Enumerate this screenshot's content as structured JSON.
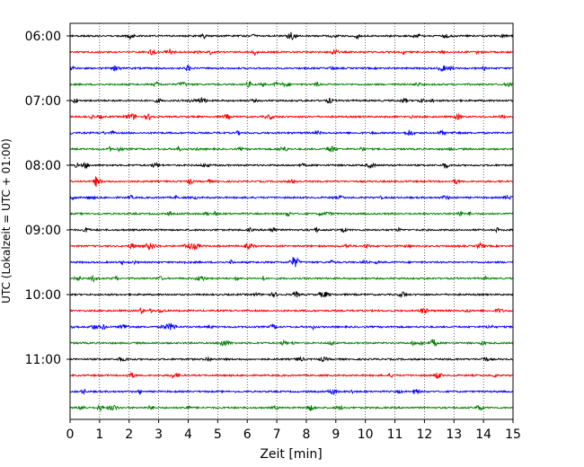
{
  "chart_data": {
    "type": "line",
    "title": "",
    "xlabel": "Zeit  [min]",
    "ylabel": "UTC (Lokalzeit = UTC + 01:00)",
    "xlim": [
      0,
      15
    ],
    "x_ticks": [
      0,
      1,
      2,
      3,
      4,
      5,
      6,
      7,
      8,
      9,
      10,
      11,
      12,
      13,
      14,
      15
    ],
    "x_tick_labels": [
      "0",
      "1",
      "2",
      "3",
      "4",
      "5",
      "6",
      "7",
      "8",
      "9",
      "10",
      "11",
      "12",
      "13",
      "14",
      "15"
    ],
    "y_tick_labels": [
      "06:00",
      "07:00",
      "08:00",
      "09:00",
      "10:00",
      "11:00"
    ],
    "grid": "vertical dotted",
    "trace_minutes": 15,
    "traces_per_hour": 4,
    "start_time": "06:00",
    "traces": [
      {
        "start": "06:00",
        "color": "#000000"
      },
      {
        "start": "06:15",
        "color": "#ff0000"
      },
      {
        "start": "06:30",
        "color": "#0000ff"
      },
      {
        "start": "06:45",
        "color": "#008000"
      },
      {
        "start": "07:00",
        "color": "#000000"
      },
      {
        "start": "07:15",
        "color": "#ff0000"
      },
      {
        "start": "07:30",
        "color": "#0000ff"
      },
      {
        "start": "07:45",
        "color": "#008000"
      },
      {
        "start": "08:00",
        "color": "#000000"
      },
      {
        "start": "08:15",
        "color": "#ff0000"
      },
      {
        "start": "08:30",
        "color": "#0000ff"
      },
      {
        "start": "08:45",
        "color": "#008000"
      },
      {
        "start": "09:00",
        "color": "#000000"
      },
      {
        "start": "09:15",
        "color": "#ff0000"
      },
      {
        "start": "09:30",
        "color": "#0000ff"
      },
      {
        "start": "09:45",
        "color": "#008000"
      },
      {
        "start": "10:00",
        "color": "#000000"
      },
      {
        "start": "10:15",
        "color": "#ff0000"
      },
      {
        "start": "10:30",
        "color": "#0000ff"
      },
      {
        "start": "10:45",
        "color": "#008000"
      },
      {
        "start": "11:00",
        "color": "#000000"
      },
      {
        "start": "11:15",
        "color": "#ff0000"
      },
      {
        "start": "11:30",
        "color": "#0000ff"
      },
      {
        "start": "11:45",
        "color": "#008000"
      }
    ]
  }
}
